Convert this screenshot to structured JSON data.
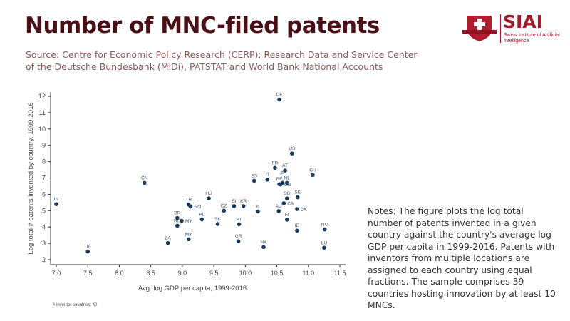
{
  "header": {
    "title": "Number of MNC-filed patents",
    "source": "Source: Centre for Economic Policy Research (CERP); Research Data and Service Center of the Deutsche Bundesbank (MiDi), PATSTAT and World Bank National Accounts",
    "logo": {
      "name": "SIAI",
      "subtitle": "Swiss Institute of Artificial Intelligence"
    }
  },
  "notes": "Notes: The figure plots the log total number of patents invented in a given country against the country's average log GDP per capita in 1999-2016. Patents with inventors from multiple locations are assigned to each country using equal fractions. The sample comprises 39 countries hosting innovation by at least 10 MNCs.",
  "chart_data": {
    "type": "scatter",
    "xlabel": "Avg. log GDP per capita, 1999-2016",
    "ylabel": "Log total # patents invented by country, 1999-2016",
    "footnote": "# inventor countries: 40",
    "xlim": [
      7.0,
      11.5
    ],
    "ylim": [
      2,
      12
    ],
    "xticks": [
      "7.0",
      "7.5",
      "8.0",
      "8.5",
      "9.0",
      "9.5",
      "10.0",
      "10.5",
      "11.0",
      "11.5"
    ],
    "yticks": [
      "2",
      "3",
      "4",
      "5",
      "6",
      "7",
      "8",
      "9",
      "10",
      "11",
      "12"
    ],
    "grid": false,
    "marker_color": "#1a3a5c",
    "points": [
      {
        "label": "IN",
        "x": 7.0,
        "y": 5.4
      },
      {
        "label": "UA",
        "x": 7.5,
        "y": 2.5
      },
      {
        "label": "CN",
        "x": 8.4,
        "y": 6.7
      },
      {
        "label": "ZA",
        "x": 8.77,
        "y": 3.02
      },
      {
        "label": "MX",
        "x": 9.1,
        "y": 3.25
      },
      {
        "label": "BR",
        "x": 8.92,
        "y": 4.55
      },
      {
        "label": "RU",
        "x": 8.92,
        "y": 4.08
      },
      {
        "label": "MY",
        "x": 8.99,
        "y": 4.38
      },
      {
        "label": "TR",
        "x": 9.1,
        "y": 5.38
      },
      {
        "label": "RO",
        "x": 9.13,
        "y": 5.25
      },
      {
        "label": "PL",
        "x": 9.31,
        "y": 4.47
      },
      {
        "label": "HU",
        "x": 9.42,
        "y": 5.75
      },
      {
        "label": "SK",
        "x": 9.56,
        "y": 4.18
      },
      {
        "label": "CZ",
        "x": 9.66,
        "y": 5.0
      },
      {
        "label": "SI",
        "x": 9.82,
        "y": 5.28
      },
      {
        "label": "KR",
        "x": 9.97,
        "y": 5.28
      },
      {
        "label": "PT",
        "x": 9.9,
        "y": 4.17
      },
      {
        "label": "GR",
        "x": 9.89,
        "y": 3.13
      },
      {
        "label": "ES",
        "x": 10.14,
        "y": 6.83
      },
      {
        "label": "IT",
        "x": 10.35,
        "y": 6.9
      },
      {
        "label": "IL",
        "x": 10.2,
        "y": 4.95
      },
      {
        "label": "HK",
        "x": 10.29,
        "y": 2.77
      },
      {
        "label": "FR",
        "x": 10.47,
        "y": 7.62
      },
      {
        "label": "DE",
        "x": 10.54,
        "y": 11.8
      },
      {
        "label": "US",
        "x": 10.74,
        "y": 8.5
      },
      {
        "label": "AT",
        "x": 10.63,
        "y": 7.45
      },
      {
        "label": "CH",
        "x": 11.07,
        "y": 7.18
      },
      {
        "label": "BE",
        "x": 10.54,
        "y": 6.62
      },
      {
        "label": "GB",
        "x": 10.56,
        "y": 6.6
      },
      {
        "label": "JP",
        "x": 10.59,
        "y": 6.7
      },
      {
        "label": "NL",
        "x": 10.66,
        "y": 6.7
      },
      {
        "label": "SG",
        "x": 10.66,
        "y": 5.75
      },
      {
        "label": "SE",
        "x": 10.83,
        "y": 5.82
      },
      {
        "label": "CA",
        "x": 10.61,
        "y": 5.45
      },
      {
        "label": "AU",
        "x": 10.53,
        "y": 4.97
      },
      {
        "label": "DK",
        "x": 10.82,
        "y": 5.1
      },
      {
        "label": "FI",
        "x": 10.66,
        "y": 4.45
      },
      {
        "label": "IE",
        "x": 10.82,
        "y": 3.78
      },
      {
        "label": "NO",
        "x": 11.26,
        "y": 3.85
      },
      {
        "label": "LU",
        "x": 11.25,
        "y": 2.73
      }
    ]
  }
}
